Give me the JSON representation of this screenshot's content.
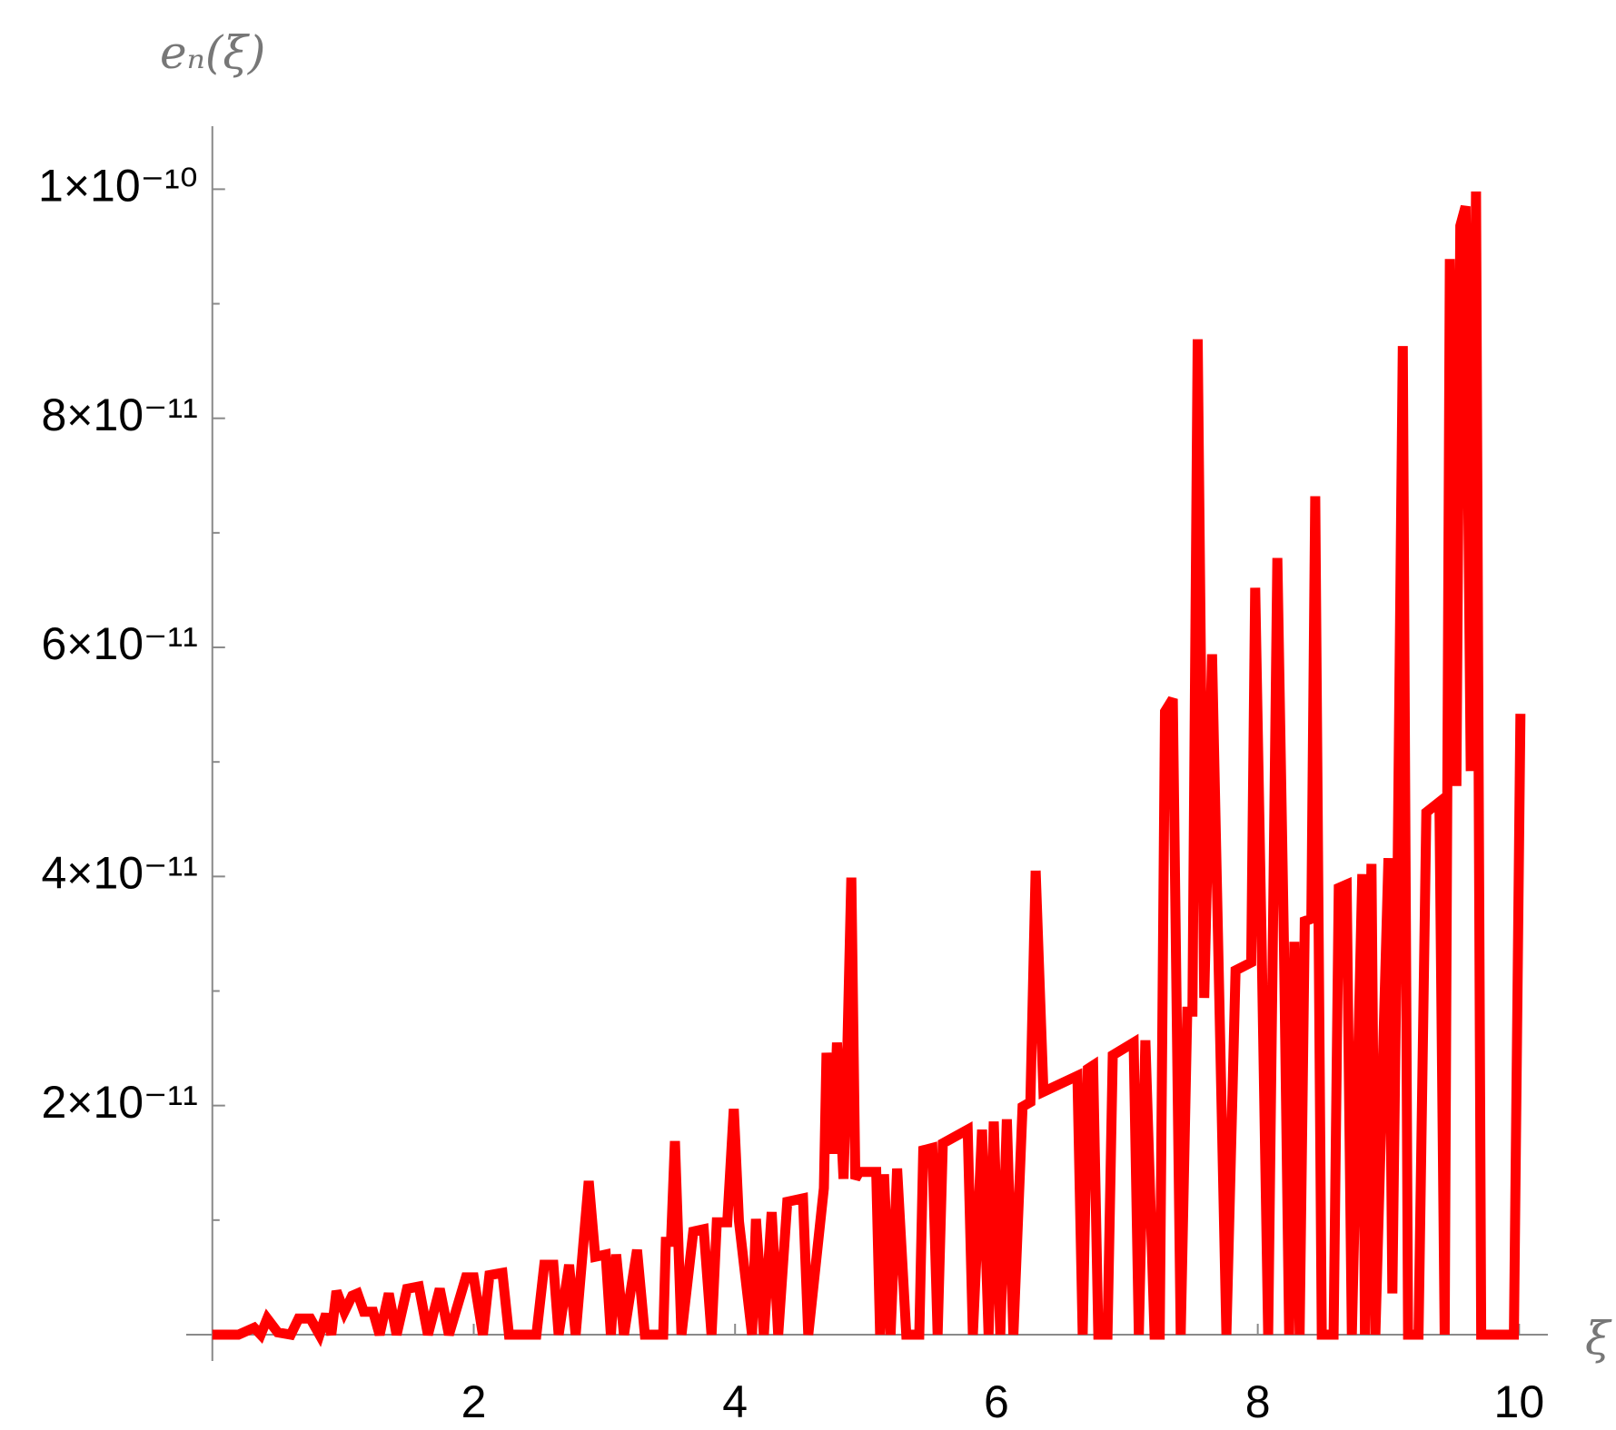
{
  "chart_data": {
    "type": "line",
    "ylabel": "eₙ(ξ)",
    "xlabel": "ξ",
    "color": "#ff0000",
    "x": [
      0,
      0.2,
      0.32,
      0.37,
      0.42,
      0.5,
      0.6,
      0.66,
      0.75,
      0.82,
      0.87,
      0.91,
      0.95,
      1.01,
      1.07,
      1.11,
      1.16,
      1.23,
      1.28,
      1.35,
      1.41,
      1.49,
      1.58,
      1.65,
      1.74,
      1.81,
      1.94,
      2,
      2.07,
      2.12,
      2.22,
      2.27,
      2.48,
      2.54,
      2.61,
      2.65,
      2.73,
      2.78,
      2.88,
      2.93,
      3.01,
      3.05,
      3.09,
      3.15,
      3.25,
      3.31,
      3.45,
      3.47,
      3.51,
      3.54,
      3.59,
      3.68,
      3.76,
      3.82,
      3.86,
      3.94,
      3.99,
      4.03,
      4.13,
      4.16,
      4.22,
      4.28,
      4.33,
      4.4,
      4.52,
      4.56,
      4.68,
      4.7,
      4.75,
      4.78,
      4.83,
      4.86,
      4.89,
      4.92,
      4.95,
      5.08,
      5.11,
      5.14,
      5.19,
      5.24,
      5.31,
      5.41,
      5.44,
      5.51,
      5.55,
      5.59,
      5.78,
      5.82,
      5.89,
      5.94,
      5.98,
      6.03,
      6.08,
      6.13,
      6.2,
      6.26,
      6.3,
      6.36,
      6.62,
      6.66,
      6.7,
      6.74,
      6.78,
      6.85,
      6.89,
      7.05,
      7.09,
      7.14,
      7.21,
      7.25,
      7.29,
      7.35,
      7.41,
      7.46,
      7.5,
      7.54,
      7.59,
      7.65,
      7.76,
      7.83,
      7.95,
      7.98,
      8.03,
      8.08,
      8.15,
      8.2,
      8.24,
      8.28,
      8.32,
      8.36,
      8.41,
      8.44,
      8.49,
      8.58,
      8.62,
      8.68,
      8.72,
      8.8,
      8.82,
      8.87,
      8.9,
      9,
      9.03,
      9.07,
      9.11,
      9.15,
      9.23,
      9.29,
      9.39,
      9.43,
      9.47,
      9.52,
      9.55,
      9.59,
      9.63,
      9.67,
      9.71,
      9.75,
      9.96,
      10.01
    ],
    "values": [
      0,
      0,
      6e-13,
      0,
      1.4e-12,
      2e-13,
      0,
      1.4e-12,
      1.4e-12,
      0,
      1.8e-12,
      0,
      3.8e-12,
      2e-12,
      3.4e-12,
      3.6e-12,
      2e-12,
      2e-12,
      0,
      3.6e-12,
      0,
      4e-12,
      4.2e-12,
      0,
      4e-12,
      0,
      5e-12,
      5e-12,
      0,
      5.2e-12,
      5.4e-12,
      0,
      0,
      6.1e-12,
      6.1e-12,
      0,
      6.1e-12,
      0,
      1.34e-11,
      6.8e-12,
      7e-12,
      0,
      7e-12,
      0,
      7.4e-12,
      0,
      0,
      8.1e-12,
      8.1e-12,
      1.69e-11,
      0,
      9e-12,
      9.2e-12,
      0,
      9.8e-12,
      9.8e-12,
      1.97e-11,
      9.9e-12,
      0,
      1.01e-11,
      0,
      1.07e-11,
      0,
      1.16e-11,
      1.19e-11,
      0,
      1.28e-11,
      2.46e-11,
      1.58e-11,
      2.55e-11,
      1.36e-11,
      2.53e-11,
      3.99e-11,
      1.36e-11,
      1.42e-11,
      1.42e-11,
      0,
      1.4e-11,
      0,
      1.45e-11,
      0,
      0,
      1.61e-11,
      1.63e-11,
      0,
      1.67e-11,
      1.79e-11,
      0,
      1.79e-11,
      0,
      1.86e-11,
      0,
      1.88e-11,
      0,
      1.99e-11,
      2.03e-11,
      4.05e-11,
      2.12e-11,
      2.26e-11,
      0,
      2.32e-11,
      2.35e-11,
      0,
      0,
      2.44e-11,
      2.55e-11,
      0,
      2.57e-11,
      0,
      0,
      5.44e-11,
      5.55e-11,
      0,
      2.82e-11,
      2.82e-11,
      8.69e-11,
      2.94e-11,
      5.94e-11,
      0,
      3.18e-11,
      3.25e-11,
      6.52e-11,
      3.36e-11,
      0,
      6.78e-11,
      3.43e-11,
      0,
      3.43e-11,
      0,
      3.61e-11,
      3.63e-11,
      7.32e-11,
      0,
      0,
      3.9e-11,
      3.93e-11,
      0,
      4.02e-11,
      0,
      4.11e-11,
      0,
      4.16e-11,
      3.6e-12,
      4.07e-11,
      8.63e-11,
      0,
      0,
      4.56e-11,
      4.65e-11,
      0,
      9.39e-11,
      4.79e-11,
      9.68e-11,
      9.85e-11,
      4.92e-11,
      9.98e-11,
      0,
      0,
      0,
      5.42e-11
    ],
    "xlim": [
      -0.2,
      10.22
    ],
    "ylim": [
      -2.3e-12,
      1.055e-10
    ],
    "xticks": [
      2,
      4,
      6,
      8,
      10
    ],
    "yticks": [
      {
        "value": 2e-11,
        "label": "2×10⁻¹¹"
      },
      {
        "value": 4e-11,
        "label": "4×10⁻¹¹"
      },
      {
        "value": 6e-11,
        "label": "6×10⁻¹¹"
      },
      {
        "value": 8e-11,
        "label": "8×10⁻¹¹"
      },
      {
        "value": 1e-10,
        "label": "1×10⁻¹⁰"
      }
    ],
    "yminor_ticks": [
      1e-11,
      3e-11,
      5e-11,
      7e-11,
      9e-11
    ]
  }
}
